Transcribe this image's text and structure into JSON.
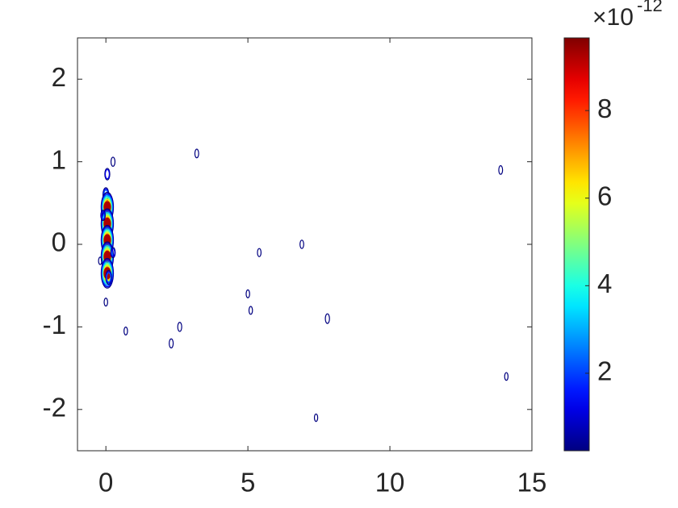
{
  "chart_data": {
    "type": "contour",
    "xlim": [
      -1,
      15
    ],
    "xticks": [
      0,
      5,
      10,
      15
    ],
    "ylim": [
      -2.5,
      2.5
    ],
    "yticks": [
      -2,
      -1,
      0,
      1,
      2
    ],
    "colormap": "jet",
    "clim": [
      0.23,
      9.66
    ],
    "cticks": [
      2,
      4,
      6,
      8
    ],
    "colorbar_base": "×10",
    "colorbar_exponent": "-12",
    "features": {
      "x": [
        0.05,
        0.0,
        0.05,
        0.05,
        0.05,
        0.05,
        0.05,
        0.05,
        0.1,
        -0.1,
        0.25,
        0.25,
        0.0,
        -0.2,
        0.7,
        2.3,
        2.6,
        3.2,
        5.0,
        5.1,
        5.4,
        6.9,
        7.8,
        7.4,
        13.9,
        14.1
      ],
      "y": [
        0.85,
        0.6,
        0.4,
        0.45,
        0.25,
        0.05,
        -0.15,
        -0.35,
        -0.4,
        0.35,
        -0.1,
        1.0,
        -0.7,
        -0.2,
        -1.05,
        -1.2,
        -1.0,
        1.1,
        -0.6,
        -0.8,
        -0.1,
        0.0,
        -0.9,
        -2.1,
        0.9,
        -1.6
      ],
      "level": [
        2,
        3,
        4,
        9.5,
        9.5,
        9.5,
        9.5,
        9.5,
        3,
        1.5,
        1.5,
        1,
        0.5,
        0.3,
        0.5,
        1,
        1,
        0.8,
        0.5,
        0.5,
        0.6,
        0.7,
        1.2,
        0.3,
        0.8,
        0.4
      ]
    }
  }
}
